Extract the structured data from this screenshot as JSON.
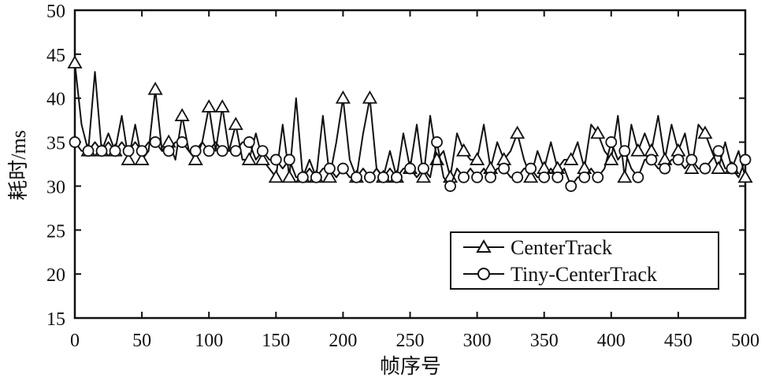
{
  "chart_data": {
    "type": "line",
    "title": "",
    "xlabel": "帧序号",
    "ylabel": "耗时/ms",
    "xlim": [
      0,
      500
    ],
    "ylim": [
      15,
      50
    ],
    "xticks": [
      0,
      50,
      100,
      150,
      200,
      250,
      300,
      350,
      400,
      450,
      500
    ],
    "yticks": [
      15,
      20,
      25,
      30,
      35,
      40,
      45,
      50
    ],
    "grid": false,
    "legend_position": "lower-right",
    "x_step": 5,
    "marker_every": 2,
    "series": [
      {
        "name": "CenterTrack",
        "marker": "triangle",
        "values": [
          44,
          37,
          34,
          43,
          34,
          36,
          34,
          38,
          33,
          37,
          33,
          34,
          41,
          34,
          35,
          33,
          38,
          34,
          33,
          35,
          39,
          34,
          39,
          34,
          37,
          33,
          33,
          36,
          33,
          32,
          31,
          37,
          31,
          40,
          31,
          33,
          31,
          38,
          31,
          35,
          40,
          33,
          31,
          36,
          40,
          32,
          31,
          34,
          31,
          36,
          32,
          37,
          31,
          38,
          33,
          34,
          31,
          36,
          34,
          33,
          33,
          37,
          32,
          35,
          33,
          34,
          36,
          33,
          31,
          34,
          32,
          35,
          32,
          33,
          33,
          35,
          32,
          37,
          36,
          34,
          33,
          38,
          31,
          37,
          34,
          36,
          34,
          38,
          33,
          37,
          34,
          36,
          32,
          37,
          36,
          34,
          32,
          35,
          32,
          34,
          31
        ]
      },
      {
        "name": "Tiny-CenterTrack",
        "marker": "circle",
        "values": [
          35,
          34,
          34,
          35,
          34,
          35,
          34,
          35,
          34,
          35,
          34,
          35,
          35,
          34,
          34,
          35,
          35,
          34,
          34,
          35,
          34,
          35,
          34,
          34,
          34,
          35,
          35,
          33,
          34,
          33,
          33,
          32,
          33,
          31,
          31,
          32,
          31,
          32,
          32,
          31,
          32,
          31,
          31,
          32,
          31,
          32,
          31,
          32,
          31,
          32,
          32,
          31,
          32,
          31,
          35,
          31,
          30,
          32,
          31,
          32,
          31,
          32,
          31,
          32,
          32,
          31,
          31,
          32,
          32,
          31,
          31,
          32,
          31,
          32,
          30,
          31,
          31,
          32,
          31,
          32,
          35,
          33,
          34,
          32,
          31,
          33,
          33,
          32,
          32,
          33,
          33,
          32,
          33,
          32,
          32,
          33,
          34,
          32,
          32,
          31,
          33
        ]
      }
    ]
  }
}
